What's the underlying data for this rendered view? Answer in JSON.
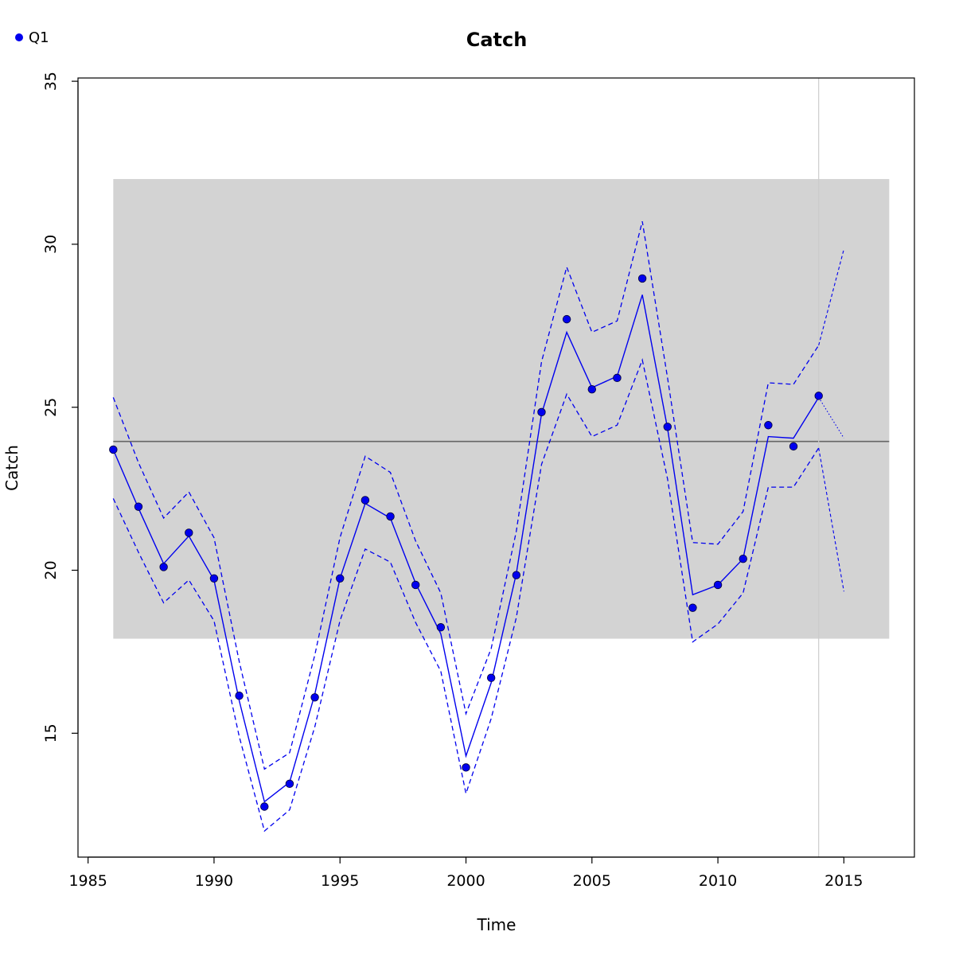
{
  "chart_data": {
    "type": "line",
    "title": "Catch",
    "xlabel": "Time",
    "ylabel": "Catch",
    "xlim": [
      1985,
      2018
    ],
    "ylim": [
      11.5,
      35
    ],
    "x_ticks": [
      "1985",
      "1990",
      "1995",
      "2000",
      "2005",
      "2010",
      "2015"
    ],
    "y_ticks": [
      "15",
      "20",
      "25",
      "30",
      "35"
    ],
    "legend": {
      "position": "top-left",
      "entries": [
        "Q1"
      ]
    },
    "band": {
      "x_range": [
        1986,
        2016.8
      ],
      "y_range": [
        17.9,
        32.0
      ],
      "color": "#d3d3d3"
    },
    "mean_line": {
      "y": 23.95,
      "color": "#666666"
    },
    "vertical_line": {
      "x": 2014,
      "color": "#cccccc"
    },
    "series": [
      {
        "name": "Q1",
        "color": "#0000ee",
        "points": {
          "x": [
            1986,
            1987,
            1988,
            1989,
            1990,
            1991,
            1992,
            1993,
            1994,
            1995,
            1996,
            1997,
            1998,
            1999,
            2000,
            2001,
            2002,
            2003,
            2004,
            2005,
            2006,
            2007,
            2008,
            2009,
            2010,
            2011,
            2012,
            2013,
            2014
          ],
          "y": [
            23.7,
            21.95,
            20.1,
            21.15,
            19.75,
            16.15,
            12.75,
            13.45,
            16.1,
            19.75,
            22.15,
            21.65,
            19.55,
            18.25,
            13.95,
            16.7,
            19.85,
            24.85,
            27.7,
            25.55,
            25.9,
            28.95,
            24.4,
            18.85,
            19.55,
            20.35,
            24.45,
            23.8,
            25.35
          ]
        },
        "fit": {
          "x": [
            1986,
            1987,
            1988,
            1989,
            1990,
            1991,
            1992,
            1993,
            1994,
            1995,
            1996,
            1997,
            1998,
            1999,
            2000,
            2001,
            2002,
            2003,
            2004,
            2005,
            2006,
            2007,
            2008,
            2009,
            2010,
            2011,
            2012,
            2013,
            2014
          ],
          "y": [
            23.7,
            21.9,
            20.2,
            21.05,
            19.7,
            16.0,
            12.9,
            13.5,
            16.2,
            19.75,
            22.05,
            21.6,
            19.6,
            18.05,
            14.3,
            16.55,
            19.9,
            24.8,
            27.3,
            25.6,
            25.95,
            28.45,
            24.35,
            19.25,
            19.55,
            20.35,
            24.1,
            24.05,
            25.3
          ]
        },
        "upper": {
          "x": [
            1986,
            1987,
            1988,
            1989,
            1990,
            1991,
            1992,
            1993,
            1994,
            1995,
            1996,
            1997,
            1998,
            1999,
            2000,
            2001,
            2002,
            2003,
            2004,
            2005,
            2006,
            2007,
            2008,
            2009,
            2010,
            2011,
            2012,
            2013,
            2014
          ],
          "y": [
            25.3,
            23.3,
            21.6,
            22.4,
            21.0,
            17.2,
            13.9,
            14.4,
            17.4,
            21.0,
            23.5,
            23.0,
            20.9,
            19.3,
            15.6,
            17.6,
            21.2,
            26.4,
            29.3,
            27.3,
            27.65,
            30.7,
            25.9,
            20.85,
            20.8,
            21.8,
            25.75,
            25.7,
            26.9
          ]
        },
        "lower": {
          "x": [
            1986,
            1987,
            1988,
            1989,
            1990,
            1991,
            1992,
            1993,
            1994,
            1995,
            1996,
            1997,
            1998,
            1999,
            2000,
            2001,
            2002,
            2003,
            2004,
            2005,
            2006,
            2007,
            2008,
            2009,
            2010,
            2011,
            2012,
            2013,
            2014
          ],
          "y": [
            22.2,
            20.55,
            19.0,
            19.7,
            18.45,
            14.9,
            12.0,
            12.65,
            15.2,
            18.45,
            20.65,
            20.25,
            18.4,
            16.9,
            13.15,
            15.45,
            18.55,
            23.25,
            25.4,
            24.1,
            24.45,
            26.45,
            22.8,
            17.8,
            18.35,
            19.3,
            22.55,
            22.55,
            23.75
          ]
        },
        "forecast": {
          "x": [
            2014,
            2015
          ],
          "y": [
            25.3,
            24.05
          ]
        },
        "forecast_upper": {
          "x": [
            2014,
            2015
          ],
          "y": [
            26.9,
            29.85
          ]
        },
        "forecast_lower": {
          "x": [
            2014,
            2015
          ],
          "y": [
            23.75,
            19.35
          ]
        }
      }
    ]
  }
}
